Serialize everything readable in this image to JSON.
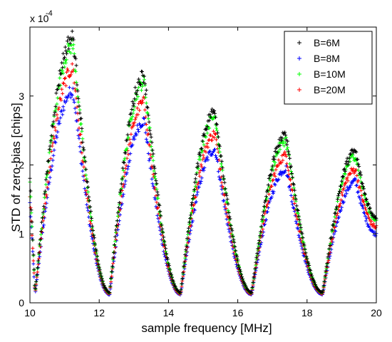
{
  "chart_data": {
    "type": "scatter",
    "marker": "+",
    "xlabel": "sample frequency [MHz]",
    "ylabel": "STD of zero-bias [chips]",
    "xlim": [
      10,
      20
    ],
    "ylim": [
      0,
      0.0004
    ],
    "x_ticks": [
      "10",
      "12",
      "14",
      "16",
      "18",
      "20"
    ],
    "y_ticks": [
      "0",
      "1",
      "2",
      "3"
    ],
    "y_multiplier_base": "x 10",
    "y_multiplier_exp": "-4",
    "grid": false,
    "legend_position": "top-right",
    "x_step": 0.02,
    "lobes": [
      {
        "start": 10.15,
        "peak": 11.25,
        "end": 12.3,
        "peak_value": 0.000385
      },
      {
        "start": 12.3,
        "peak": 13.3,
        "end": 14.35,
        "peak_value": 0.00033
      },
      {
        "start": 14.35,
        "peak": 15.35,
        "end": 16.4,
        "peak_value": 0.000278
      },
      {
        "start": 16.4,
        "peak": 17.4,
        "end": 18.45,
        "peak_value": 0.000243
      },
      {
        "start": 18.45,
        "peak": 19.4,
        "end": 20.0,
        "peak_value": 0.00022
      }
    ],
    "left_edge_value": 0.00018,
    "right_edge_value": 0.000125,
    "min_value": 1.5e-05,
    "series": [
      {
        "name": "B=6M",
        "color": "#000000",
        "scale": 1.0
      },
      {
        "name": "B=8M",
        "color": "#0000ff",
        "scale": 0.8
      },
      {
        "name": "B=10M",
        "color": "#00ff00",
        "scale": 0.97
      },
      {
        "name": "B=20M",
        "color": "#ff0000",
        "scale": 0.88
      }
    ]
  }
}
